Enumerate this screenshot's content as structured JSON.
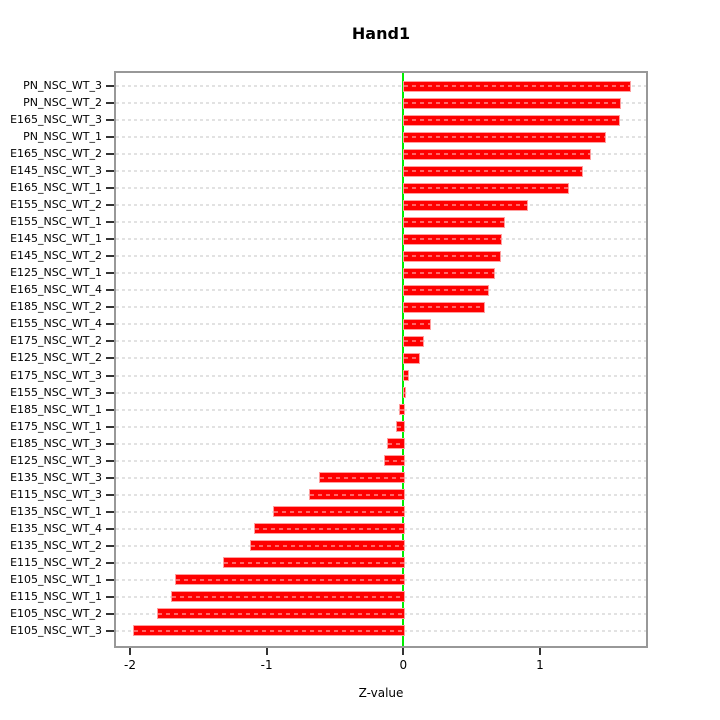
{
  "chart_data": {
    "type": "bar",
    "orientation": "horizontal",
    "title": "Hand1",
    "xlabel": "Z-value",
    "ylabel": "",
    "grid": true,
    "zero_line": true,
    "legend": "none",
    "xlim": [
      -2.117,
      1.791
    ],
    "xticks": [
      -2,
      -1,
      0,
      1
    ],
    "categories": [
      "PN_NSC_WT_3",
      "PN_NSC_WT_2",
      "E165_NSC_WT_3",
      "PN_NSC_WT_1",
      "E165_NSC_WT_2",
      "E145_NSC_WT_3",
      "E165_NSC_WT_1",
      "E155_NSC_WT_2",
      "E155_NSC_WT_1",
      "E145_NSC_WT_1",
      "E145_NSC_WT_2",
      "E125_NSC_WT_1",
      "E165_NSC_WT_4",
      "E185_NSC_WT_2",
      "E155_NSC_WT_4",
      "E175_NSC_WT_2",
      "E125_NSC_WT_2",
      "E175_NSC_WT_3",
      "E155_NSC_WT_3",
      "E185_NSC_WT_1",
      "E175_NSC_WT_1",
      "E185_NSC_WT_3",
      "E125_NSC_WT_3",
      "E135_NSC_WT_3",
      "E115_NSC_WT_3",
      "E135_NSC_WT_1",
      "E135_NSC_WT_4",
      "E135_NSC_WT_2",
      "E115_NSC_WT_2",
      "E105_NSC_WT_1",
      "E115_NSC_WT_1",
      "E105_NSC_WT_2",
      "E105_NSC_WT_3"
    ],
    "values": [
      1.65,
      1.58,
      1.57,
      1.47,
      1.36,
      1.3,
      1.2,
      0.9,
      0.73,
      0.71,
      0.7,
      0.66,
      0.61,
      0.58,
      0.19,
      0.14,
      0.11,
      0.03,
      0.005,
      -0.03,
      -0.05,
      -0.12,
      -0.14,
      -0.62,
      -0.69,
      -0.95,
      -1.09,
      -1.12,
      -1.32,
      -1.67,
      -1.7,
      -1.8,
      -1.98
    ]
  },
  "colors": {
    "bar_fill": "#fe0000",
    "bar_border": "#ff9e9e",
    "zero_line": "#00ee00",
    "grid_line": "#e2e2e2",
    "box_border": "#989898",
    "text": "#000000"
  }
}
